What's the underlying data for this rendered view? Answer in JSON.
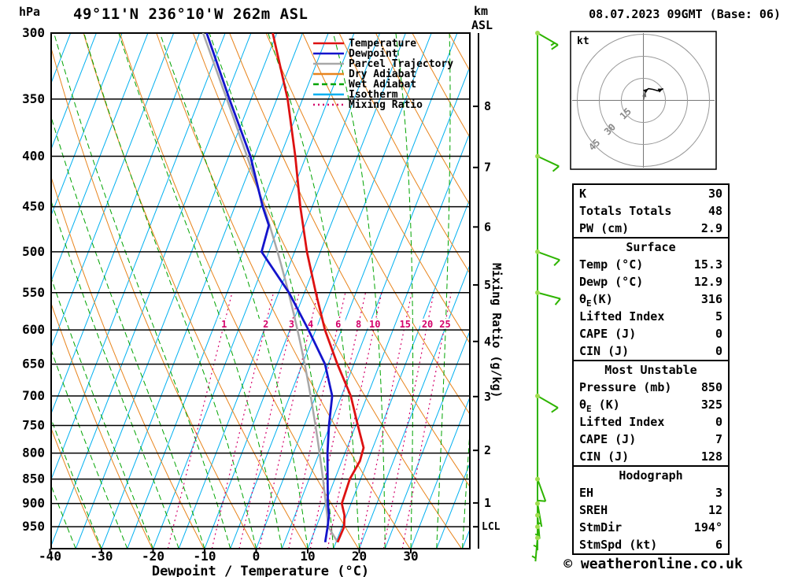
{
  "header": {
    "pressure_unit": "hPa",
    "title": "49°11'N 236°10'W 262m ASL",
    "km_label": "km",
    "asl_label": "ASL",
    "datetime": "08.07.2023 09GMT (Base: 06)"
  },
  "axes": {
    "pressure_ticks": [
      300,
      350,
      400,
      450,
      500,
      550,
      600,
      650,
      700,
      750,
      800,
      850,
      900,
      950
    ],
    "temp_ticks": [
      -40,
      -30,
      -20,
      -10,
      0,
      10,
      20,
      30
    ],
    "x_axis_label": "Dewpoint / Temperature (°C)",
    "km_ticks": [
      1,
      2,
      3,
      4,
      5,
      6,
      7,
      8
    ],
    "lcl_label": "LCL",
    "mixing_ratio_label": "Mixing Ratio (g/kg)",
    "mixing_ratio_values": [
      1,
      2,
      3,
      4,
      6,
      8,
      10,
      15,
      20,
      25
    ]
  },
  "legend": [
    {
      "id": "temperature",
      "label": "Temperature",
      "color": "#dd1111",
      "style": "solid"
    },
    {
      "id": "dewpoint",
      "label": "Dewpoint",
      "color": "#1414cc",
      "style": "solid"
    },
    {
      "id": "parcel",
      "label": "Parcel Trajectory",
      "color": "#a8a8a8",
      "style": "solid"
    },
    {
      "id": "dry_adiabat",
      "label": "Dry Adiabat",
      "color": "#e8841c",
      "style": "solid"
    },
    {
      "id": "wet_adiabat",
      "label": "Wet Adiabat",
      "color": "#00a400",
      "style": "dashed"
    },
    {
      "id": "isotherm",
      "label": "Isotherm",
      "color": "#00b0f0",
      "style": "solid"
    },
    {
      "id": "mixing_ratio",
      "label": "Mixing Ratio",
      "color": "#d4006a",
      "style": "dotted"
    }
  ],
  "chart_data": {
    "type": "line",
    "x_axis": "Dewpoint / Temperature (°C)",
    "y_axis": "Pressure (hPa)",
    "pressure_range": [
      300,
      1000
    ],
    "surface": {
      "pressure": 985,
      "temp": 15.3,
      "dewp": 12.9
    },
    "temperature_profile": [
      [
        985,
        15.3
      ],
      [
        950,
        15.4
      ],
      [
        925,
        14.6
      ],
      [
        900,
        13.2
      ],
      [
        850,
        12.9
      ],
      [
        815,
        13.5
      ],
      [
        790,
        13.2
      ],
      [
        750,
        10.4
      ],
      [
        700,
        6.8
      ],
      [
        650,
        1.8
      ],
      [
        600,
        -3.2
      ],
      [
        550,
        -7.8
      ],
      [
        500,
        -12.6
      ],
      [
        450,
        -17.3
      ],
      [
        400,
        -22.1
      ],
      [
        350,
        -27.9
      ],
      [
        300,
        -35.8
      ]
    ],
    "dewpoint_profile": [
      [
        985,
        12.9
      ],
      [
        950,
        12.2
      ],
      [
        925,
        11.6
      ],
      [
        900,
        10.5
      ],
      [
        850,
        8.6
      ],
      [
        800,
        6.6
      ],
      [
        750,
        4.8
      ],
      [
        700,
        3.2
      ],
      [
        650,
        -0.6
      ],
      [
        600,
        -6.4
      ],
      [
        550,
        -13.0
      ],
      [
        500,
        -21.4
      ],
      [
        470,
        -22.0
      ],
      [
        450,
        -24.6
      ],
      [
        400,
        -30.8
      ],
      [
        350,
        -39.2
      ],
      [
        300,
        -48.6
      ]
    ],
    "wind_barbs": [
      {
        "p": 300,
        "dir": 300,
        "spd": 15
      },
      {
        "p": 400,
        "dir": 295,
        "spd": 12
      },
      {
        "p": 500,
        "dir": 290,
        "spd": 10
      },
      {
        "p": 550,
        "dir": 285,
        "spd": 8
      },
      {
        "p": 700,
        "dir": 300,
        "spd": 10
      },
      {
        "p": 850,
        "dir": 340,
        "spd": 8
      },
      {
        "p": 900,
        "dir": 350,
        "spd": 6
      },
      {
        "p": 925,
        "dir": 355,
        "spd": 5
      },
      {
        "p": 950,
        "dir": 0,
        "spd": 5
      },
      {
        "p": 975,
        "dir": 5,
        "spd": 5
      }
    ],
    "wind_barb_color": "#2eb400",
    "wind_node_color": "#a0dc50"
  },
  "hodograph": {
    "unit": "kt",
    "rings_kt": [
      15,
      30,
      45
    ],
    "trace_uv": [
      [
        0.5,
        3
      ],
      [
        1.5,
        6.5
      ],
      [
        3.5,
        8
      ],
      [
        6.5,
        7.5
      ],
      [
        10,
        6.5
      ],
      [
        13.5,
        8
      ]
    ],
    "storm_dir": 194,
    "storm_spd": 6
  },
  "panels": [
    {
      "rows": [
        [
          "K",
          "30"
        ],
        [
          "Totals Totals",
          "48"
        ],
        [
          "PW (cm)",
          "2.9"
        ]
      ]
    },
    {
      "title": "Surface",
      "rows": [
        [
          "Temp (°C)",
          "15.3"
        ],
        [
          "Dewp (°C)",
          "12.9"
        ],
        [
          "θ_E(K)",
          "316"
        ],
        [
          "Lifted Index",
          "5"
        ],
        [
          "CAPE (J)",
          "0"
        ],
        [
          "CIN (J)",
          "0"
        ]
      ]
    },
    {
      "title": "Most Unstable",
      "rows": [
        [
          "Pressure (mb)",
          "850"
        ],
        [
          "θ_E (K)",
          "325"
        ],
        [
          "Lifted Index",
          "0"
        ],
        [
          "CAPE (J)",
          "7"
        ],
        [
          "CIN (J)",
          "128"
        ]
      ]
    },
    {
      "title": "Hodograph",
      "rows": [
        [
          "EH",
          "3"
        ],
        [
          "SREH",
          "12"
        ],
        [
          "StmDir",
          "194°"
        ],
        [
          "StmSpd (kt)",
          "6"
        ]
      ]
    }
  ],
  "footer": {
    "copyright": "© weatheronline.co.uk"
  }
}
